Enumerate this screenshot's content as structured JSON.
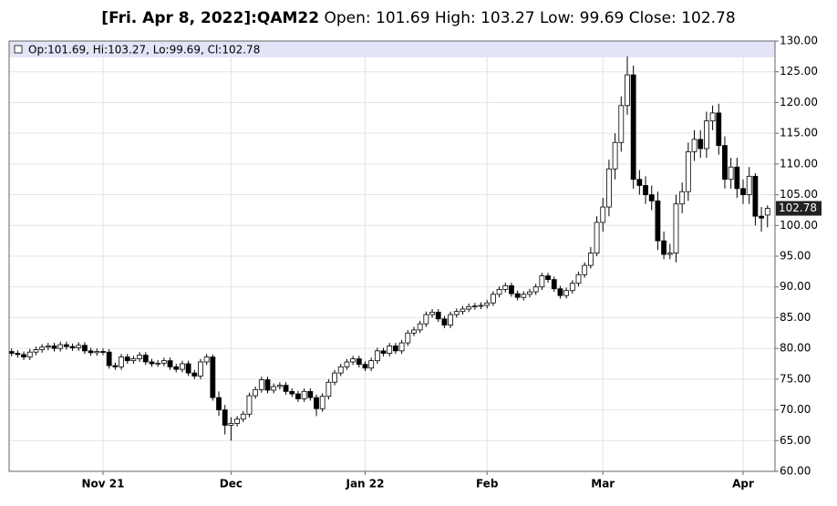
{
  "chart_data": {
    "type": "candlestick",
    "title": "[Fri. Apr 8, 2022]:QAM22",
    "subtitle": "Open: 101.69 High: 103.27 Low: 99.69 Close: 102.78",
    "legend_text": "Op:101.69, Hi:103.27, Lo:99.69, Cl:102.78",
    "categories": [
      null,
      null,
      null,
      null,
      null,
      null,
      null,
      null,
      null,
      null,
      null,
      null,
      null,
      null,
      null,
      "Nov 21",
      null,
      null,
      null,
      null,
      null,
      null,
      null,
      null,
      null,
      null,
      null,
      null,
      null,
      null,
      null,
      null,
      null,
      null,
      null,
      null,
      "Dec",
      null,
      null,
      null,
      null,
      null,
      null,
      null,
      null,
      null,
      null,
      null,
      null,
      null,
      null,
      null,
      null,
      null,
      null,
      null,
      null,
      null,
      "Jan 22",
      null,
      null,
      null,
      null,
      null,
      null,
      null,
      null,
      null,
      null,
      null,
      null,
      null,
      null,
      null,
      null,
      null,
      null,
      null,
      "Feb",
      null,
      null,
      null,
      null,
      null,
      null,
      null,
      null,
      null,
      null,
      null,
      null,
      null,
      null,
      null,
      null,
      null,
      null,
      "Mar",
      null,
      null,
      null,
      null,
      null,
      null,
      null,
      null,
      null,
      null,
      null,
      null,
      null,
      null,
      null,
      null,
      null,
      null,
      null,
      null,
      null,
      null,
      "Apr",
      null,
      null,
      null,
      null
    ],
    "open": [
      79.5,
      79.2,
      79.0,
      78.6,
      79.4,
      79.8,
      80.2,
      80.4,
      80.0,
      80.6,
      80.3,
      80.1,
      80.5,
      79.6,
      79.3,
      79.5,
      79.4,
      77.2,
      77.0,
      78.6,
      78.0,
      78.3,
      78.9,
      77.8,
      77.5,
      77.6,
      78.0,
      77.0,
      76.6,
      77.5,
      76.0,
      75.5,
      77.8,
      78.6,
      72.0,
      70.0,
      67.5,
      67.8,
      68.5,
      69.3,
      72.3,
      73.3,
      74.9,
      73.2,
      73.8,
      74.0,
      73.0,
      72.6,
      71.8,
      73.0,
      72.0,
      70.2,
      72.2,
      74.5,
      76.0,
      77.0,
      77.8,
      78.3,
      77.4,
      76.8,
      78.0,
      79.6,
      79.2,
      80.4,
      79.6,
      80.9,
      82.5,
      83.0,
      84.0,
      85.5,
      85.9,
      84.8,
      83.8,
      85.5,
      86.0,
      86.4,
      86.8,
      86.9,
      87.0,
      87.4,
      88.8,
      89.6,
      90.2,
      88.9,
      88.3,
      88.8,
      89.2,
      90.0,
      91.8,
      91.2,
      89.7,
      88.6,
      89.4,
      90.6,
      92.0,
      93.5,
      95.5,
      100.5,
      103.0,
      109.2,
      113.5,
      119.5,
      124.5,
      107.5,
      106.5,
      105.0,
      104.0,
      97.5,
      95.3,
      95.5,
      103.5,
      105.5,
      112.0,
      114.0,
      112.5,
      117.0,
      118.3,
      113.0,
      107.5,
      109.5,
      106.0,
      105.0,
      108.0,
      101.5,
      101.69
    ],
    "high": [
      80.0,
      79.7,
      79.5,
      79.9,
      80.3,
      80.7,
      80.9,
      80.9,
      81.1,
      81.1,
      80.8,
      81.0,
      81.0,
      80.1,
      80.0,
      80.0,
      79.9,
      77.7,
      79.1,
      79.1,
      78.8,
      79.4,
      79.4,
      78.3,
      78.1,
      78.5,
      78.5,
      77.5,
      78.0,
      78.0,
      76.5,
      78.3,
      79.1,
      79.0,
      73.0,
      70.8,
      68.8,
      69.0,
      69.8,
      72.8,
      73.8,
      75.4,
      75.4,
      74.3,
      74.5,
      74.5,
      73.5,
      73.1,
      73.5,
      73.5,
      72.5,
      72.7,
      75.0,
      76.5,
      77.5,
      78.3,
      78.8,
      78.8,
      77.9,
      78.5,
      80.1,
      80.1,
      80.9,
      80.9,
      81.4,
      83.0,
      83.5,
      84.5,
      86.0,
      86.4,
      86.4,
      85.3,
      86.0,
      86.5,
      86.9,
      87.3,
      87.4,
      87.5,
      87.9,
      89.3,
      90.1,
      90.7,
      90.7,
      89.4,
      89.3,
      89.7,
      90.5,
      92.3,
      92.3,
      91.7,
      90.2,
      89.9,
      91.1,
      92.5,
      94.0,
      96.5,
      101.5,
      104.5,
      110.7,
      115.0,
      121.0,
      127.5,
      126.0,
      109.0,
      108.0,
      106.5,
      105.5,
      99.0,
      97.0,
      105.0,
      107.0,
      113.5,
      115.5,
      115.5,
      118.5,
      119.5,
      119.8,
      114.5,
      111.0,
      111.0,
      107.5,
      109.5,
      108.5,
      103.0,
      103.27
    ],
    "low": [
      78.7,
      78.5,
      78.1,
      78.1,
      78.9,
      79.3,
      79.7,
      79.5,
      79.5,
      79.8,
      79.6,
      79.6,
      79.1,
      78.8,
      78.8,
      78.9,
      76.7,
      76.5,
      76.5,
      77.5,
      77.5,
      77.8,
      77.3,
      77.0,
      77.0,
      77.1,
      76.5,
      76.1,
      76.1,
      75.5,
      75.0,
      75.0,
      77.3,
      71.5,
      69.0,
      66.0,
      65.0,
      67.3,
      68.0,
      68.8,
      71.8,
      72.8,
      72.7,
      72.7,
      73.3,
      72.5,
      72.1,
      71.3,
      71.3,
      71.5,
      69.0,
      69.7,
      71.7,
      74.0,
      75.5,
      76.5,
      77.3,
      76.9,
      76.3,
      76.3,
      77.5,
      78.7,
      78.7,
      79.1,
      79.1,
      80.4,
      82.0,
      82.5,
      83.5,
      85.0,
      84.3,
      83.3,
      83.3,
      85.0,
      85.5,
      85.9,
      86.3,
      86.4,
      86.5,
      86.9,
      88.3,
      89.1,
      88.4,
      87.8,
      87.8,
      88.3,
      88.7,
      89.5,
      90.7,
      89.2,
      88.1,
      88.1,
      88.9,
      90.1,
      91.5,
      93.0,
      95.0,
      99.0,
      101.5,
      107.5,
      112.0,
      118.0,
      106.0,
      105.0,
      103.5,
      102.5,
      96.0,
      94.5,
      94.5,
      94.0,
      102.0,
      104.0,
      110.5,
      111.0,
      111.0,
      115.5,
      111.5,
      106.0,
      106.0,
      104.5,
      103.5,
      103.5,
      100.0,
      99.0,
      99.69
    ],
    "close": [
      79.2,
      79.0,
      78.6,
      79.4,
      79.8,
      80.2,
      80.4,
      80.0,
      80.6,
      80.3,
      80.1,
      80.5,
      79.6,
      79.3,
      79.5,
      79.4,
      77.2,
      77.0,
      78.6,
      78.0,
      78.3,
      78.9,
      77.8,
      77.5,
      77.6,
      78.0,
      77.0,
      76.6,
      77.5,
      76.0,
      75.5,
      77.8,
      78.6,
      72.0,
      70.0,
      67.5,
      67.8,
      68.5,
      69.3,
      72.3,
      73.3,
      74.9,
      73.2,
      73.8,
      74.0,
      73.0,
      72.6,
      71.8,
      73.0,
      72.0,
      70.2,
      72.2,
      74.5,
      76.0,
      77.0,
      77.8,
      78.3,
      77.4,
      76.8,
      78.0,
      79.6,
      79.2,
      80.4,
      79.6,
      80.9,
      82.5,
      83.0,
      84.0,
      85.5,
      85.9,
      84.8,
      83.8,
      85.5,
      86.0,
      86.4,
      86.8,
      86.9,
      87.0,
      87.4,
      88.8,
      89.6,
      90.2,
      88.9,
      88.3,
      88.8,
      89.2,
      90.0,
      91.8,
      91.2,
      89.7,
      88.6,
      89.4,
      90.6,
      92.0,
      93.5,
      95.5,
      100.5,
      103.0,
      109.2,
      113.5,
      119.5,
      124.5,
      107.5,
      106.5,
      105.0,
      104.0,
      97.5,
      95.3,
      95.5,
      103.5,
      105.5,
      112.0,
      114.0,
      112.5,
      117.0,
      118.3,
      113.0,
      107.5,
      109.5,
      106.0,
      105.0,
      108.0,
      101.5,
      101.2,
      102.78
    ],
    "up_color": "#ffffff",
    "down_color": "#000000",
    "grid": true,
    "ylim": [
      60,
      130
    ],
    "yticks": [
      {
        "value": 60,
        "label": "60.00"
      },
      {
        "value": 65,
        "label": "65.00"
      },
      {
        "value": 70,
        "label": "70.00"
      },
      {
        "value": 75,
        "label": "75.00"
      },
      {
        "value": 80,
        "label": "80.00"
      },
      {
        "value": 85,
        "label": "85.00"
      },
      {
        "value": 90,
        "label": "90.00"
      },
      {
        "value": 95,
        "label": "95.00"
      },
      {
        "value": 100,
        "label": "100.00"
      },
      {
        "value": 105,
        "label": "105.00"
      },
      {
        "value": 110,
        "label": "110.00"
      },
      {
        "value": 115,
        "label": "115.00"
      },
      {
        "value": 120,
        "label": "120.00"
      },
      {
        "value": 125,
        "label": "125.00"
      },
      {
        "value": 130,
        "label": "130.00"
      }
    ]
  }
}
